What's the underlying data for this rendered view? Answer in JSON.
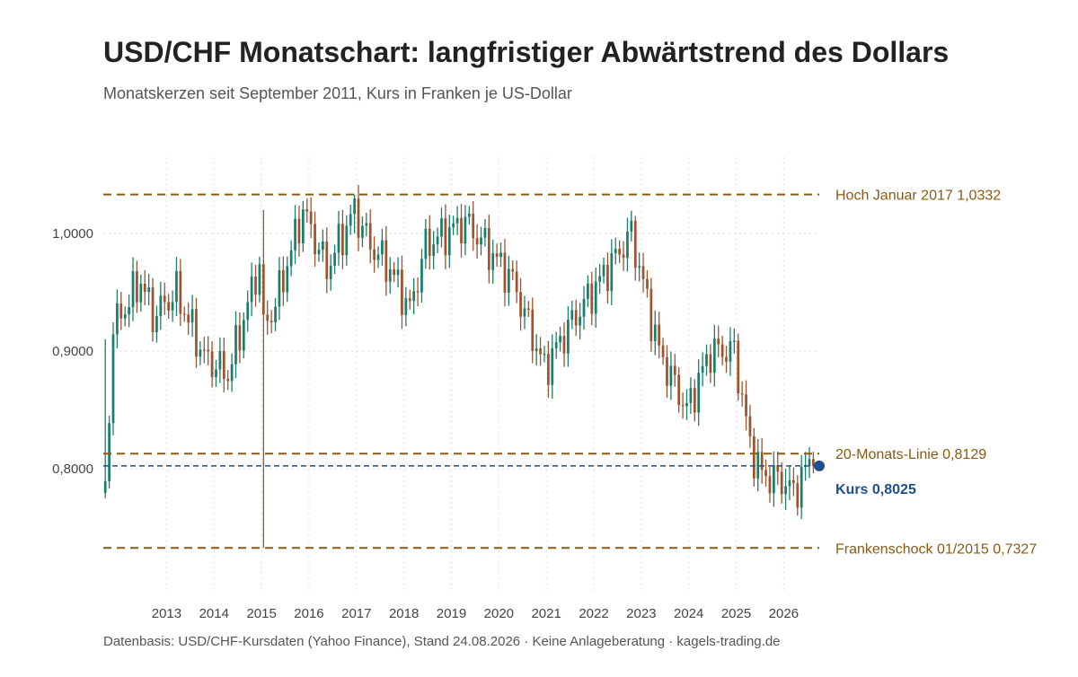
{
  "header": {
    "title": "USD/CHF Monatschart: langfristiger Abwärtstrend des Dollars",
    "subtitle": "Monatskerzen seit September 2011, Kurs in Franken je US-Dollar"
  },
  "footer": {
    "caption": "Datenbasis: USD/CHF-Kursdaten (Yahoo Finance), Stand 24.08.2026 · Keine Anlageberatung · kagels-trading.de"
  },
  "colors": {
    "up": "#1a7f6a",
    "down": "#a0522d",
    "reference": "#8a5a14",
    "price": "#1f4e8c",
    "grid": "#dddddd"
  },
  "chart_data": {
    "type": "candlestick",
    "title": "USD/CHF Monatschart: langfristiger Abwärtstrend des Dollars",
    "subtitle": "Monatskerzen seit September 2011, Kurs in Franken je US-Dollar",
    "xlabel": "",
    "ylabel": "",
    "x_ticks": [
      "2013",
      "2014",
      "2015",
      "2016",
      "2017",
      "2018",
      "2019",
      "2020",
      "2021",
      "2022",
      "2023",
      "2024",
      "2025",
      "2026"
    ],
    "y_ticks": [
      "0,8000",
      "0,9000",
      "1,0000"
    ],
    "ylim": [
      0.71,
      1.065
    ],
    "xlim": [
      "2011-09",
      "2026-10"
    ],
    "grid": true,
    "reference_lines": [
      {
        "label": "Hoch Januar 2017 1,0332",
        "value": 1.0332
      },
      {
        "label": "20-Monats-Linie 0,8129",
        "value": 0.8129
      },
      {
        "label": "Frankenschock 01/2015 0,7327",
        "value": 0.7327
      }
    ],
    "current_price": {
      "label": "Kurs 0,8025",
      "value": 0.8025
    },
    "anchors": [
      [
        "2011-09",
        0.78
      ],
      [
        "2011-11",
        0.92
      ],
      [
        "2012-06",
        0.96
      ],
      [
        "2012-09",
        0.93
      ],
      [
        "2013-03",
        0.95
      ],
      [
        "2013-10",
        0.895
      ],
      [
        "2014-04",
        0.88
      ],
      [
        "2014-12",
        0.975
      ],
      [
        "2015-01",
        0.92
      ],
      [
        "2015-04",
        0.94
      ],
      [
        "2015-11",
        1.02
      ],
      [
        "2016-05",
        0.97
      ],
      [
        "2016-12",
        1.02
      ],
      [
        "2017-04",
        0.99
      ],
      [
        "2017-09",
        0.97
      ],
      [
        "2018-02",
        0.935
      ],
      [
        "2018-06",
        0.99
      ],
      [
        "2019-04",
        1.01
      ],
      [
        "2019-09",
        0.99
      ],
      [
        "2020-04",
        0.96
      ],
      [
        "2020-12",
        0.885
      ],
      [
        "2021-06",
        0.92
      ],
      [
        "2022-04",
        0.97
      ],
      [
        "2022-10",
        1.0
      ],
      [
        "2023-05",
        0.9
      ],
      [
        "2023-12",
        0.85
      ],
      [
        "2024-06",
        0.9
      ],
      [
        "2024-12",
        0.9
      ],
      [
        "2025-04",
        0.82
      ],
      [
        "2025-07",
        0.795
      ],
      [
        "2025-12",
        0.79
      ],
      [
        "2026-03",
        0.78
      ],
      [
        "2026-07",
        0.805
      ],
      [
        "2026-08",
        0.8025
      ]
    ],
    "extremes": [
      {
        "month": "2011-09",
        "high": 0.91,
        "low": 0.775
      },
      {
        "month": "2015-01",
        "high": 1.02,
        "low": 0.7327
      },
      {
        "month": "2016-12",
        "high": 1.0332,
        "low": 1.0
      },
      {
        "month": "2022-11",
        "high": 1.015,
        "low": 0.96
      },
      {
        "month": "2026-01",
        "high": 0.8,
        "low": 0.765
      }
    ]
  }
}
